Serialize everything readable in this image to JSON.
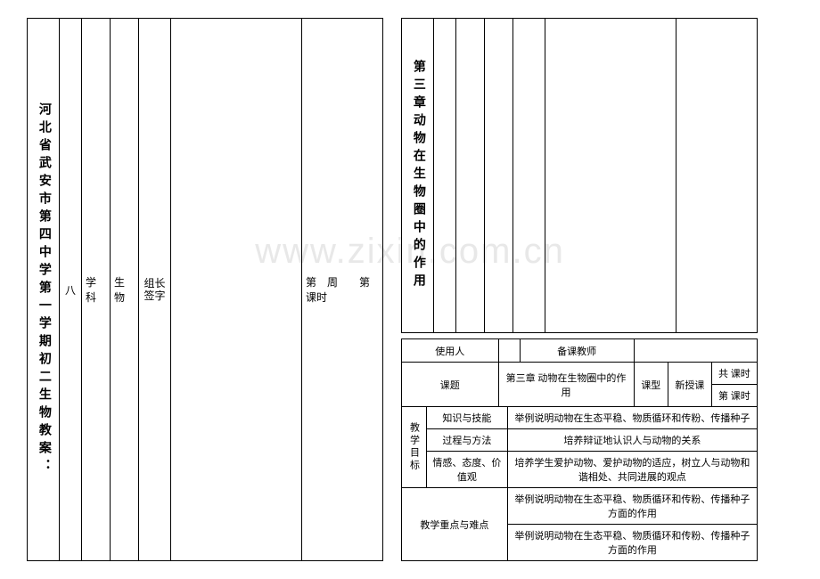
{
  "watermark": "www.zixin.com.cn",
  "left": {
    "title": "河北省武安市第四中学第一学期初二生物教案：",
    "grade": "八",
    "subject_label": "学科",
    "subject": "生物",
    "leader_sign": "组长签字",
    "week_period": "第　周　　第　课时"
  },
  "right_top": {
    "title": "第三章动物在生物圈中的作用"
  },
  "right_bottom": {
    "user_label": "使用人",
    "prep_label": "备课教师",
    "topic_label": "课题",
    "topic": "第三章 动物在生物圈中的作用",
    "type_label": "课型",
    "type": "新授课",
    "total_period": "共 课时",
    "this_period": "第 课时",
    "goal_label": "教学目标",
    "know_label": "知识与技能",
    "know": "举例说明动物在生态平稳、物质循环和传粉、传播种子",
    "proc_label": "过程与方法",
    "proc": "培养辩证地认识人与动物的关系",
    "emo_label": "情感、态度、价值观",
    "emo": "培养学生爱护动物、爱护动物的适应，树立人与动物和谐相处、共同进展的观点",
    "focus_label": "教学重点与难点",
    "focus1": "举例说明动物在生态平稳、物质循环和传粉、传播种子方面的作用",
    "focus2": "举例说明动物在生态平稳、物质循环和传粉、传播种子方面的作用"
  },
  "colors": {
    "border": "#000000",
    "bg": "#ffffff",
    "watermark": "#e8e8e8"
  }
}
